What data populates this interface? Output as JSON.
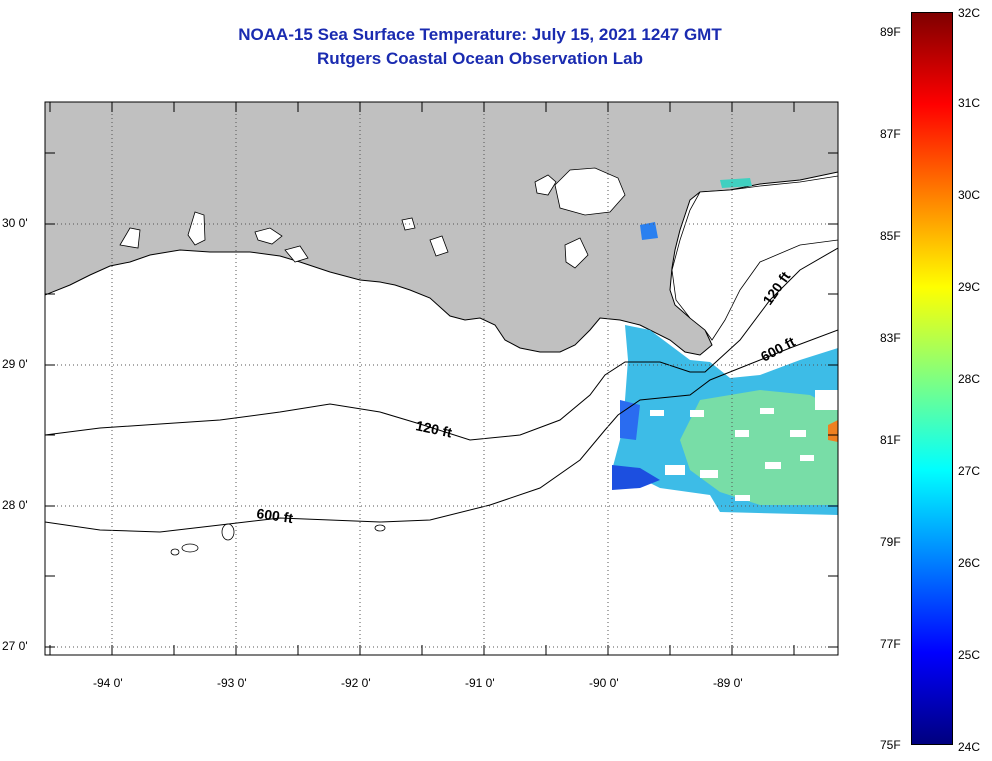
{
  "title": {
    "line1": "NOAA-15 Sea Surface Temperature:  July 15, 2021 1247 GMT",
    "line2": "Rutgers Coastal Ocean Observation Lab"
  },
  "map": {
    "lat_labels": [
      "30 0'",
      "29 0'",
      "28 0'",
      "27 0'"
    ],
    "lon_labels": [
      "-94 0'",
      "-93 0'",
      "-92 0'",
      "-91 0'",
      "-90 0'",
      "-89 0'"
    ],
    "contour_labels": {
      "c120_west": "120 ft",
      "c600_west": "600 ft",
      "c120_east": "120 ft",
      "c600_east": "600 ft"
    },
    "colors": {
      "land": "#c0c0c0",
      "frame": "#000000",
      "grid": "#555555"
    }
  },
  "colorbar": {
    "fahrenheit": [
      "89F",
      "87F",
      "85F",
      "83F",
      "81F",
      "79F",
      "77F",
      "75F"
    ],
    "celsius": [
      "32C",
      "31C",
      "30C",
      "29C",
      "28C",
      "27C",
      "26C",
      "25C",
      "24C"
    ],
    "gradient": [
      "#00007f",
      "#0000ff",
      "#0080ff",
      "#00ffff",
      "#80ff80",
      "#ffff00",
      "#ff8000",
      "#ff0000",
      "#7f0000"
    ]
  }
}
